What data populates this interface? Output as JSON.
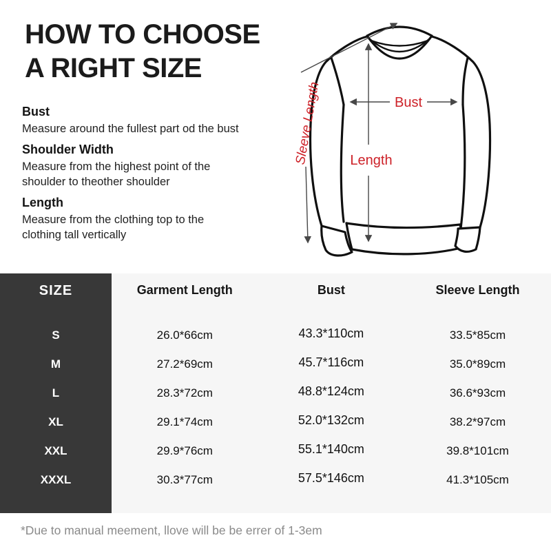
{
  "title": "HOW TO CHOOSE\nA RIGHT SIZE",
  "instructions": [
    {
      "heading": "Bust",
      "body": "Measure around the fullest part od the bust"
    },
    {
      "heading": "Shoulder Width",
      "body": "Measure from the highest point of the\nshoulder to theother shoulder"
    },
    {
      "heading": "Length",
      "body": "Measure from the clothing top to the\nclothing tall vertically"
    }
  ],
  "diagram": {
    "labels": {
      "bust": "Bust",
      "length": "Length",
      "sleeve_length": "Sleeve Length"
    }
  },
  "table": {
    "size_header": "SIZE",
    "columns": [
      "Garment Length",
      "Bust",
      "Sleeve Length"
    ],
    "rows": [
      {
        "size": "S",
        "garment_length": "26.0*66cm",
        "bust": "43.3*110cm",
        "sleeve_length": "33.5*85cm"
      },
      {
        "size": "M",
        "garment_length": "27.2*69cm",
        "bust": "45.7*116cm",
        "sleeve_length": "35.0*89cm"
      },
      {
        "size": "L",
        "garment_length": "28.3*72cm",
        "bust": "48.8*124cm",
        "sleeve_length": "36.6*93cm"
      },
      {
        "size": "XL",
        "garment_length": "29.1*74cm",
        "bust": "52.0*132cm",
        "sleeve_length": "38.2*97cm"
      },
      {
        "size": "XXL",
        "garment_length": "29.9*76cm",
        "bust": "55.1*140cm",
        "sleeve_length": "39.8*101cm"
      },
      {
        "size": "XXXL",
        "garment_length": "30.3*77cm",
        "bust": "57.5*146cm",
        "sleeve_length": "41.3*105cm"
      }
    ]
  },
  "footer_note": "*Due to manual meement, llove will be be errer of 1-3em",
  "colors": {
    "accent_red": "#cd2128",
    "table_dark": "#383838",
    "table_light": "#f6f6f6",
    "line_black": "#101010",
    "measure_gray": "#474747",
    "muted_gray": "#8a8a8a"
  }
}
